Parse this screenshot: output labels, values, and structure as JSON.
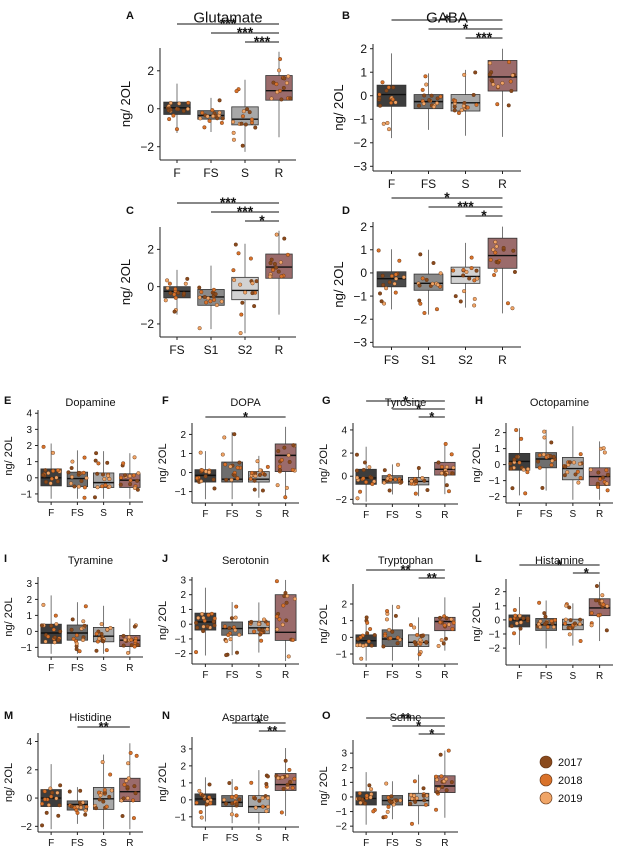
{
  "figure": {
    "y_axis_label": "ng/ 2OL",
    "legend": [
      {
        "label": "2017",
        "color": "#8a4a1c"
      },
      {
        "label": "2018",
        "color": "#d9722a"
      },
      {
        "label": "2019",
        "color": "#f0a567"
      }
    ]
  },
  "chart_data": [
    {
      "panel": "A",
      "title": "Glutamate",
      "type": "box",
      "categories": [
        "F",
        "FS",
        "S",
        "R"
      ],
      "ylim": [
        -2.7,
        3.2
      ],
      "yticks": [
        -2,
        0,
        2
      ],
      "box_colors": [
        "#3d3d3d",
        "#6e6e6e",
        "#a8a8a8",
        "#9b6b6b"
      ],
      "boxes": [
        {
          "q1": -0.3,
          "median": 0.05,
          "q3": 0.35
        },
        {
          "q1": -0.55,
          "median": -0.35,
          "q3": -0.1
        },
        {
          "q1": -0.85,
          "median": -0.55,
          "q3": 0.1
        },
        {
          "q1": 0.45,
          "median": 0.95,
          "q3": 1.75
        }
      ],
      "significance": [
        {
          "from": "F",
          "to": "R",
          "label": "***"
        },
        {
          "from": "FS",
          "to": "R",
          "label": "***"
        },
        {
          "from": "S",
          "to": "R",
          "label": "***"
        }
      ]
    },
    {
      "panel": "B",
      "title": "GABA",
      "type": "box",
      "categories": [
        "F",
        "FS",
        "S",
        "R"
      ],
      "ylim": [
        -3.2,
        2.2
      ],
      "yticks": [
        -3,
        -2,
        -1,
        0,
        1,
        2
      ],
      "box_colors": [
        "#3d3d3d",
        "#6e6e6e",
        "#a8a8a8",
        "#9b6b6b"
      ],
      "boxes": [
        {
          "q1": -0.45,
          "median": 0.05,
          "q3": 0.45
        },
        {
          "q1": -0.55,
          "median": -0.25,
          "q3": 0.05
        },
        {
          "q1": -0.65,
          "median": -0.3,
          "q3": 0.05
        },
        {
          "q1": 0.2,
          "median": 0.8,
          "q3": 1.5
        }
      ],
      "significance": [
        {
          "from": "F",
          "to": "R",
          "label": "*"
        },
        {
          "from": "FS",
          "to": "R",
          "label": "*"
        },
        {
          "from": "S",
          "to": "R",
          "label": "***"
        }
      ]
    },
    {
      "panel": "C",
      "title": "",
      "type": "box",
      "categories": [
        "FS",
        "S1",
        "S2",
        "R"
      ],
      "ylim": [
        -2.7,
        3.2
      ],
      "yticks": [
        -2,
        0,
        2
      ],
      "box_colors": [
        "#4a4a4a",
        "#8a8a8a",
        "#d2d2d2",
        "#9b6b6b"
      ],
      "boxes": [
        {
          "q1": -0.6,
          "median": -0.25,
          "q3": 0.0
        },
        {
          "q1": -1.0,
          "median": -0.55,
          "q3": -0.15
        },
        {
          "q1": -0.7,
          "median": -0.2,
          "q3": 0.5
        },
        {
          "q1": 0.45,
          "median": 1.05,
          "q3": 1.75
        }
      ],
      "significance": [
        {
          "from": "FS",
          "to": "R",
          "label": "***"
        },
        {
          "from": "S1",
          "to": "R",
          "label": "***"
        },
        {
          "from": "S2",
          "to": "R",
          "label": "*"
        }
      ]
    },
    {
      "panel": "D",
      "title": "",
      "type": "box",
      "categories": [
        "FS",
        "S1",
        "S2",
        "R"
      ],
      "ylim": [
        -3.2,
        2.2
      ],
      "yticks": [
        -3,
        -2,
        -1,
        0,
        1,
        2
      ],
      "box_colors": [
        "#4a4a4a",
        "#8a8a8a",
        "#d2d2d2",
        "#9b6b6b"
      ],
      "boxes": [
        {
          "q1": -0.6,
          "median": -0.25,
          "q3": 0.05
        },
        {
          "q1": -0.75,
          "median": -0.45,
          "q3": -0.05
        },
        {
          "q1": -0.45,
          "median": -0.15,
          "q3": 0.25
        },
        {
          "q1": 0.2,
          "median": 0.75,
          "q3": 1.5
        }
      ],
      "significance": [
        {
          "from": "FS",
          "to": "R",
          "label": "*"
        },
        {
          "from": "S1",
          "to": "R",
          "label": "***"
        },
        {
          "from": "S2",
          "to": "R",
          "label": "*"
        }
      ]
    },
    {
      "panel": "E",
      "title": "Dopamine",
      "type": "box",
      "categories": [
        "F",
        "FS",
        "S",
        "R"
      ],
      "ylim": [
        -1.5,
        4.2
      ],
      "yticks": [
        -1,
        0,
        1,
        2,
        3,
        4
      ],
      "box_colors": [
        "#3d3d3d",
        "#6e6e6e",
        "#a8a8a8",
        "#9b6b6b"
      ],
      "boxes": [
        {
          "q1": -0.5,
          "median": 0.0,
          "q3": 0.55
        },
        {
          "q1": -0.55,
          "median": -0.05,
          "q3": 0.35
        },
        {
          "q1": -0.6,
          "median": -0.3,
          "q3": 0.3
        },
        {
          "q1": -0.6,
          "median": -0.15,
          "q3": 0.25
        }
      ],
      "significance": []
    },
    {
      "panel": "F",
      "title": "DOPA",
      "type": "box",
      "categories": [
        "F",
        "FS",
        "S",
        "R"
      ],
      "ylim": [
        -1.6,
        2.6
      ],
      "yticks": [
        -1,
        0,
        1,
        2
      ],
      "box_colors": [
        "#3d3d3d",
        "#6e6e6e",
        "#a8a8a8",
        "#9b6b6b"
      ],
      "boxes": [
        {
          "q1": -0.5,
          "median": -0.15,
          "q3": 0.15
        },
        {
          "q1": -0.5,
          "median": -0.35,
          "q3": 0.55
        },
        {
          "q1": -0.5,
          "median": -0.35,
          "q3": 0.05
        },
        {
          "q1": 0.05,
          "median": 0.9,
          "q3": 1.5
        }
      ],
      "significance": [
        {
          "from": "F",
          "to": "R",
          "label": "*"
        }
      ]
    },
    {
      "panel": "G",
      "title": "Tyrosine",
      "type": "box",
      "categories": [
        "F",
        "FS",
        "S",
        "R"
      ],
      "ylim": [
        -2.4,
        4.6
      ],
      "yticks": [
        -2,
        0,
        2,
        4
      ],
      "box_colors": [
        "#3d3d3d",
        "#6e6e6e",
        "#a8a8a8",
        "#9b6b6b"
      ],
      "boxes": [
        {
          "q1": -0.7,
          "median": -0.15,
          "q3": 0.6
        },
        {
          "q1": -0.6,
          "median": -0.3,
          "q3": 0.05
        },
        {
          "q1": -0.75,
          "median": -0.45,
          "q3": -0.1
        },
        {
          "q1": 0.1,
          "median": 0.6,
          "q3": 1.2
        }
      ],
      "significance": [
        {
          "from": "F",
          "to": "R",
          "label": "*"
        },
        {
          "from": "FS",
          "to": "R",
          "label": "*"
        },
        {
          "from": "S",
          "to": "R",
          "label": "*"
        }
      ]
    },
    {
      "panel": "H",
      "title": "Octopamine",
      "type": "box",
      "categories": [
        "F",
        "FS",
        "S",
        "R"
      ],
      "ylim": [
        -2.4,
        2.6
      ],
      "yticks": [
        -2,
        -1,
        0,
        1,
        2
      ],
      "box_colors": [
        "#3d3d3d",
        "#6e6e6e",
        "#a8a8a8",
        "#9b6b6b"
      ],
      "boxes": [
        {
          "q1": -0.35,
          "median": 0.2,
          "q3": 0.7
        },
        {
          "q1": -0.2,
          "median": 0.35,
          "q3": 0.75
        },
        {
          "q1": -0.95,
          "median": -0.25,
          "q3": 0.45
        },
        {
          "q1": -1.3,
          "median": -0.75,
          "q3": -0.2
        }
      ],
      "significance": []
    },
    {
      "panel": "I",
      "title": "Tyramine",
      "type": "box",
      "categories": [
        "F",
        "FS",
        "S",
        "R"
      ],
      "ylim": [
        -1.6,
        3.4
      ],
      "yticks": [
        -1,
        0,
        1,
        2,
        3
      ],
      "box_colors": [
        "#3d3d3d",
        "#6e6e6e",
        "#a8a8a8",
        "#9b6b6b"
      ],
      "boxes": [
        {
          "q1": -0.75,
          "median": -0.1,
          "q3": 0.45
        },
        {
          "q1": -0.55,
          "median": -0.1,
          "q3": 0.4
        },
        {
          "q1": -0.65,
          "median": -0.3,
          "q3": 0.25
        },
        {
          "q1": -0.95,
          "median": -0.55,
          "q3": -0.25
        }
      ],
      "significance": []
    },
    {
      "panel": "J",
      "title": "Serotonin",
      "type": "box",
      "categories": [
        "F",
        "FS",
        "S",
        "R"
      ],
      "ylim": [
        -2.7,
        3.2
      ],
      "yticks": [
        -2,
        -1,
        0,
        1,
        2,
        3
      ],
      "box_colors": [
        "#3d3d3d",
        "#6e6e6e",
        "#a8a8a8",
        "#9b6b6b"
      ],
      "boxes": [
        {
          "q1": -0.4,
          "median": 0.15,
          "q3": 0.75
        },
        {
          "q1": -0.75,
          "median": -0.3,
          "q3": 0.15
        },
        {
          "q1": -0.65,
          "median": -0.25,
          "q3": 0.2
        },
        {
          "q1": -1.1,
          "median": -0.55,
          "q3": 2.0
        }
      ],
      "significance": []
    },
    {
      "panel": "K",
      "title": "Tryptophan",
      "type": "box",
      "categories": [
        "F",
        "FS",
        "S",
        "R"
      ],
      "ylim": [
        -1.6,
        3.2
      ],
      "yticks": [
        -1,
        0,
        1,
        2
      ],
      "box_colors": [
        "#3d3d3d",
        "#6e6e6e",
        "#a8a8a8",
        "#9b6b6b"
      ],
      "boxes": [
        {
          "q1": -0.55,
          "median": -0.2,
          "q3": 0.15
        },
        {
          "q1": -0.55,
          "median": -0.1,
          "q3": 0.45
        },
        {
          "q1": -0.55,
          "median": -0.3,
          "q3": 0.15
        },
        {
          "q1": 0.4,
          "median": 0.95,
          "q3": 1.2
        }
      ],
      "significance": [
        {
          "from": "F",
          "to": "R",
          "label": "**"
        },
        {
          "from": "S",
          "to": "R",
          "label": "**"
        }
      ]
    },
    {
      "panel": "L",
      "title": "Histamine",
      "type": "box",
      "categories": [
        "F",
        "FS",
        "S",
        "R"
      ],
      "ylim": [
        -3.2,
        2.9
      ],
      "yticks": [
        -2,
        -1,
        0,
        1,
        2
      ],
      "box_colors": [
        "#3d3d3d",
        "#6e6e6e",
        "#a8a8a8",
        "#9b6b6b"
      ],
      "boxes": [
        {
          "q1": -0.5,
          "median": 0.0,
          "q3": 0.35
        },
        {
          "q1": -0.75,
          "median": -0.35,
          "q3": 0.1
        },
        {
          "q1": -0.7,
          "median": -0.35,
          "q3": 0.05
        },
        {
          "q1": 0.3,
          "median": 0.85,
          "q3": 1.5
        }
      ],
      "significance": [
        {
          "from": "F",
          "to": "R",
          "label": "*"
        },
        {
          "from": "S",
          "to": "R",
          "label": "*"
        }
      ]
    },
    {
      "panel": "M",
      "title": "Histidine",
      "type": "box",
      "categories": [
        "F",
        "FS",
        "S",
        "R"
      ],
      "ylim": [
        -2.4,
        4.6
      ],
      "yticks": [
        -2,
        0,
        2,
        4
      ],
      "box_colors": [
        "#3d3d3d",
        "#6e6e6e",
        "#a8a8a8",
        "#9b6b6b"
      ],
      "boxes": [
        {
          "q1": -0.6,
          "median": 0.0,
          "q3": 0.6
        },
        {
          "q1": -0.85,
          "median": -0.45,
          "q3": -0.2
        },
        {
          "q1": -0.8,
          "median": -0.05,
          "q3": 0.75
        },
        {
          "q1": -0.25,
          "median": 0.45,
          "q3": 1.4
        }
      ],
      "significance": [
        {
          "from": "FS",
          "to": "R",
          "label": "**"
        }
      ]
    },
    {
      "panel": "N",
      "title": "Aspartate",
      "type": "box",
      "categories": [
        "F",
        "FS",
        "S",
        "R"
      ],
      "ylim": [
        -1.6,
        3.7
      ],
      "yticks": [
        -1,
        0,
        1,
        2,
        3
      ],
      "box_colors": [
        "#3d3d3d",
        "#6e6e6e",
        "#a8a8a8",
        "#9b6b6b"
      ],
      "boxes": [
        {
          "q1": -0.3,
          "median": 0.05,
          "q3": 0.35
        },
        {
          "q1": -0.4,
          "median": -0.15,
          "q3": 0.25
        },
        {
          "q1": -0.75,
          "median": -0.4,
          "q3": 0.25
        },
        {
          "q1": 0.55,
          "median": 0.9,
          "q3": 1.55
        }
      ],
      "significance": [
        {
          "from": "FS",
          "to": "R",
          "label": "*"
        },
        {
          "from": "S",
          "to": "R",
          "label": "**"
        }
      ]
    },
    {
      "panel": "O",
      "title": "Serine",
      "type": "box",
      "categories": [
        "F",
        "FS",
        "S",
        "R"
      ],
      "ylim": [
        -2.4,
        3.9
      ],
      "yticks": [
        -2,
        -1,
        0,
        1,
        2,
        3
      ],
      "box_colors": [
        "#3d3d3d",
        "#6e6e6e",
        "#a8a8a8",
        "#9b6b6b"
      ],
      "boxes": [
        {
          "q1": -0.55,
          "median": -0.1,
          "q3": 0.35
        },
        {
          "q1": -0.55,
          "median": -0.25,
          "q3": 0.1
        },
        {
          "q1": -0.6,
          "median": -0.25,
          "q3": 0.25
        },
        {
          "q1": 0.3,
          "median": 0.75,
          "q3": 1.45
        }
      ],
      "significance": [
        {
          "from": "F",
          "to": "R",
          "label": "**"
        },
        {
          "from": "FS",
          "to": "R",
          "label": "*"
        },
        {
          "from": "S",
          "to": "R",
          "label": "*"
        }
      ]
    }
  ]
}
